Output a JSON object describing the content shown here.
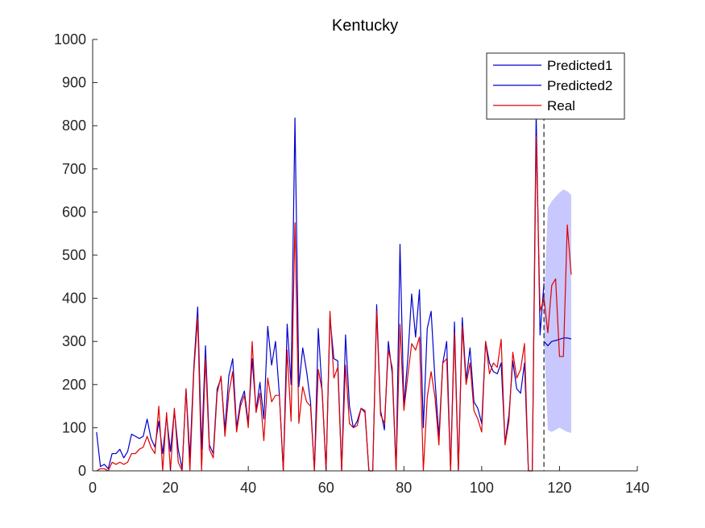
{
  "chart_data": {
    "type": "line",
    "title": "Kentucky",
    "xlabel": "",
    "ylabel": "",
    "xlim": [
      0,
      140
    ],
    "ylim": [
      0,
      1000
    ],
    "xticks": [
      0,
      20,
      40,
      60,
      80,
      100,
      120,
      140
    ],
    "yticks": [
      0,
      100,
      200,
      300,
      400,
      500,
      600,
      700,
      800,
      900,
      1000
    ],
    "grid": false,
    "legend_position": "top-right",
    "forecast_start": 116,
    "series": [
      {
        "name": "Predicted1",
        "color": "#0000cd",
        "x": [
          1,
          2,
          3,
          4,
          5,
          6,
          7,
          8,
          9,
          10,
          11,
          12,
          13,
          14,
          15,
          16,
          17,
          18,
          19,
          20,
          21,
          22,
          23,
          24,
          25,
          26,
          27,
          28,
          29,
          30,
          31,
          32,
          33,
          34,
          35,
          36,
          37,
          38,
          39,
          40,
          41,
          42,
          43,
          44,
          45,
          46,
          47,
          48,
          49,
          50,
          51,
          52,
          53,
          54,
          55,
          56,
          57,
          58,
          59,
          60,
          61,
          62,
          63,
          64,
          65,
          66,
          67,
          68,
          69,
          70,
          71,
          72,
          73,
          74,
          75,
          76,
          77,
          78,
          79,
          80,
          81,
          82,
          83,
          84,
          85,
          86,
          87,
          88,
          89,
          90,
          91,
          92,
          93,
          94,
          95,
          96,
          97,
          98,
          99,
          100,
          101,
          102,
          103,
          104,
          105,
          106,
          107,
          108,
          109,
          110,
          111,
          112,
          113,
          114,
          115,
          116
        ],
        "y": [
          90,
          10,
          15,
          5,
          40,
          40,
          50,
          30,
          45,
          85,
          80,
          75,
          80,
          120,
          75,
          55,
          115,
          40,
          125,
          45,
          140,
          50,
          5,
          190,
          30,
          240,
          380,
          50,
          290,
          60,
          40,
          190,
          215,
          95,
          220,
          260,
          100,
          160,
          185,
          110,
          260,
          140,
          205,
          120,
          335,
          245,
          300,
          175,
          0,
          340,
          200,
          818,
          195,
          285,
          230,
          160,
          0,
          330,
          180,
          0,
          355,
          260,
          255,
          0,
          315,
          150,
          100,
          115,
          145,
          135,
          0,
          0,
          385,
          140,
          95,
          300,
          225,
          0,
          525,
          150,
          260,
          410,
          310,
          420,
          100,
          330,
          370,
          210,
          80,
          250,
          300,
          0,
          345,
          0,
          355,
          210,
          285,
          160,
          145,
          110,
          300,
          250,
          230,
          225,
          250,
          65,
          130,
          255,
          190,
          180,
          250,
          0,
          0,
          830,
          315,
          435
        ]
      },
      {
        "name": "Predicted2",
        "color": "#0000cd",
        "x": [
          116,
          117,
          118,
          119,
          120,
          121,
          122,
          123
        ],
        "y": [
          300,
          290,
          300,
          302,
          305,
          308,
          308,
          306
        ]
      },
      {
        "name": "Real",
        "color": "#e00000",
        "x": [
          1,
          2,
          3,
          4,
          5,
          6,
          7,
          8,
          9,
          10,
          11,
          12,
          13,
          14,
          15,
          16,
          17,
          18,
          19,
          20,
          21,
          22,
          23,
          24,
          25,
          26,
          27,
          28,
          29,
          30,
          31,
          32,
          33,
          34,
          35,
          36,
          37,
          38,
          39,
          40,
          41,
          42,
          43,
          44,
          45,
          46,
          47,
          48,
          49,
          50,
          51,
          52,
          53,
          54,
          55,
          56,
          57,
          58,
          59,
          60,
          61,
          62,
          63,
          64,
          65,
          66,
          67,
          68,
          69,
          70,
          71,
          72,
          73,
          74,
          75,
          76,
          77,
          78,
          79,
          80,
          81,
          82,
          83,
          84,
          85,
          86,
          87,
          88,
          89,
          90,
          91,
          92,
          93,
          94,
          95,
          96,
          97,
          98,
          99,
          100,
          101,
          102,
          103,
          104,
          105,
          106,
          107,
          108,
          109,
          110,
          111,
          112,
          113,
          114,
          115,
          116,
          117,
          118,
          119,
          120,
          121,
          122,
          123
        ],
        "y": [
          0,
          5,
          5,
          0,
          20,
          15,
          20,
          15,
          20,
          40,
          40,
          50,
          55,
          80,
          55,
          40,
          150,
          0,
          135,
          0,
          145,
          20,
          0,
          190,
          0,
          230,
          355,
          0,
          260,
          50,
          30,
          180,
          220,
          80,
          180,
          230,
          90,
          150,
          175,
          100,
          300,
          135,
          180,
          70,
          215,
          160,
          175,
          175,
          0,
          280,
          115,
          575,
          110,
          195,
          160,
          150,
          0,
          235,
          185,
          0,
          370,
          215,
          240,
          0,
          245,
          110,
          100,
          105,
          145,
          140,
          0,
          0,
          370,
          130,
          110,
          280,
          240,
          0,
          340,
          140,
          220,
          295,
          280,
          310,
          0,
          170,
          230,
          170,
          60,
          250,
          260,
          0,
          320,
          0,
          335,
          200,
          250,
          140,
          120,
          90,
          300,
          225,
          250,
          240,
          305,
          60,
          115,
          275,
          215,
          235,
          295,
          0,
          0,
          775,
          370,
          400,
          320,
          430,
          445,
          265,
          265,
          570,
          455
        ]
      }
    ],
    "bands": [
      {
        "name": "",
        "color": "#c8c8ff",
        "x": [
          116,
          117,
          118,
          119,
          120,
          121,
          122,
          123
        ],
        "upper": [
          385,
          610,
          625,
          635,
          645,
          652,
          648,
          640
        ],
        "lower": [
          310,
          95,
          90,
          95,
          100,
          95,
          90,
          88
        ]
      }
    ]
  }
}
